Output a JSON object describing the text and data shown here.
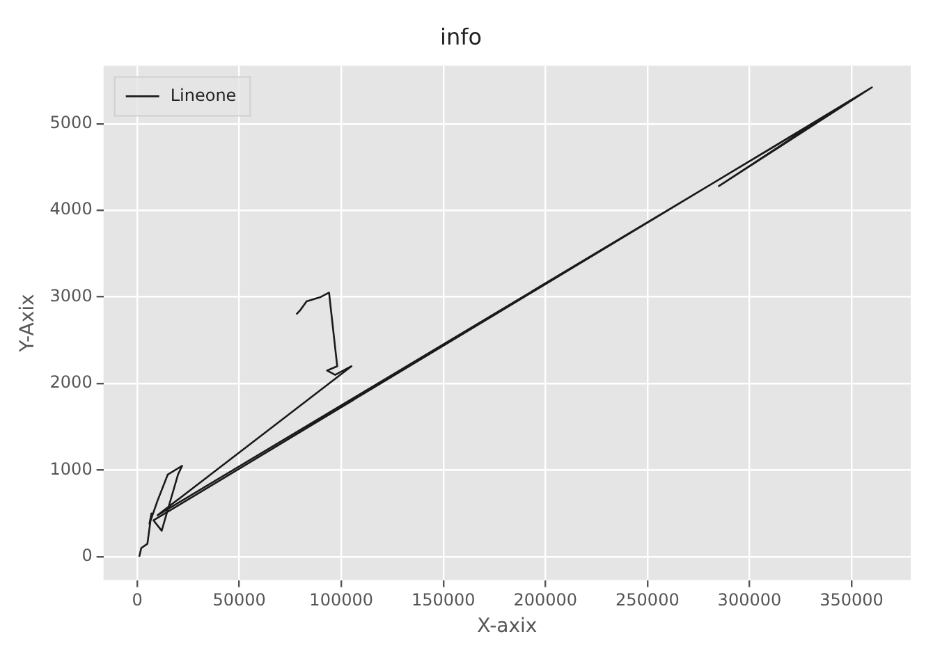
{
  "chart_data": {
    "type": "line",
    "title": "info",
    "xlabel": "X-axix",
    "ylabel": "Y-Axix",
    "x": [
      1000,
      2000,
      5000,
      7000,
      6000,
      10000,
      15000,
      22000,
      20000,
      12000,
      8000,
      360000,
      285000,
      340000,
      10000,
      105000,
      97000,
      93000,
      98000,
      94000,
      90000,
      83000,
      80000,
      78000
    ],
    "series": [
      {
        "name": "Lineone",
        "color": "#1a1a1a",
        "values": [
          0,
          100,
          150,
          500,
          380,
          650,
          950,
          1050,
          950,
          300,
          420,
          5420,
          4280,
          5130,
          480,
          2200,
          2100,
          2150,
          2200,
          3050,
          3000,
          2950,
          2850,
          2800
        ]
      }
    ],
    "xlim": [
      -16500,
      379000
    ],
    "ylim": [
      -270,
      5670
    ],
    "xticks": [
      0,
      50000,
      100000,
      150000,
      200000,
      250000,
      300000,
      350000
    ],
    "yticks": [
      0,
      1000,
      2000,
      3000,
      4000,
      5000
    ],
    "grid": true,
    "legend": "top left",
    "marker": "none",
    "line_style": "solid"
  }
}
